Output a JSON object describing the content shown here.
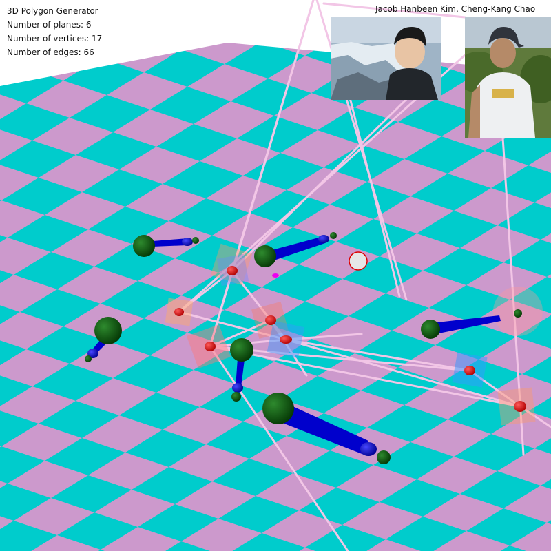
{
  "app": {
    "title": "3D Polygon Generator"
  },
  "stats": {
    "planes_label": "Number of planes:",
    "planes_value": "6",
    "vertices_label": "Number of vertices:",
    "vertices_value": "17",
    "edges_label": "Number of edges:",
    "edges_value": "66"
  },
  "authors": "Jacob Hanbeen Kim, Cheng-Kang Chao",
  "colors": {
    "floor_a": "#00cccc",
    "floor_b": "#cc99cc",
    "vertex": "#ee0000",
    "handle_base": "#0a5c0a",
    "handle_arrow": "#0000cc",
    "edge": "#f2c6e6"
  },
  "icons": {
    "photo1": "author-photo-icon",
    "photo2": "author-photo-icon"
  }
}
